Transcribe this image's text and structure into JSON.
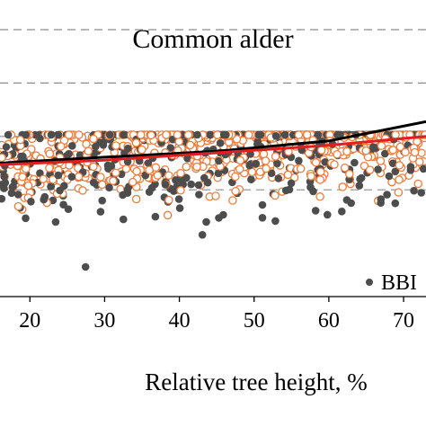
{
  "chart_data": {
    "type": "scatter",
    "title": "Common alder",
    "xlabel": "Relative tree height, %",
    "ylabel": "",
    "x_ticks": [
      20,
      30,
      40,
      50,
      60,
      70
    ],
    "xlim": [
      16,
      73
    ],
    "ylim": [
      0,
      1
    ],
    "gridlines_y": [
      0.9,
      0.72,
      0.54,
      0.36
    ],
    "grid": true,
    "legend": {
      "placement": "bottom-right",
      "entries": [
        {
          "label": "BBI",
          "marker": "filled-circle",
          "color": "#4d4d4d"
        }
      ]
    },
    "series": [
      {
        "marker": "filled-circle",
        "color": "#4d4d4d",
        "description_count": 400
      },
      {
        "marker": "open-circle",
        "color": "#f07c3a",
        "description_count": 650
      }
    ],
    "trend_lines": [
      {
        "color": "#000000",
        "x": [
          16,
          30,
          45,
          60,
          73
        ],
        "y": [
          0.45,
          0.47,
          0.49,
          0.525,
          0.59
        ]
      },
      {
        "color": "#e02020",
        "x": [
          16,
          30,
          45,
          60,
          73
        ],
        "y": [
          0.445,
          0.46,
          0.485,
          0.51,
          0.54
        ]
      }
    ]
  },
  "colors": {
    "filled_marker": "#4d4d4d",
    "open_marker": "#f07c3a",
    "trend_black": "#000000",
    "trend_red": "#e02020"
  }
}
